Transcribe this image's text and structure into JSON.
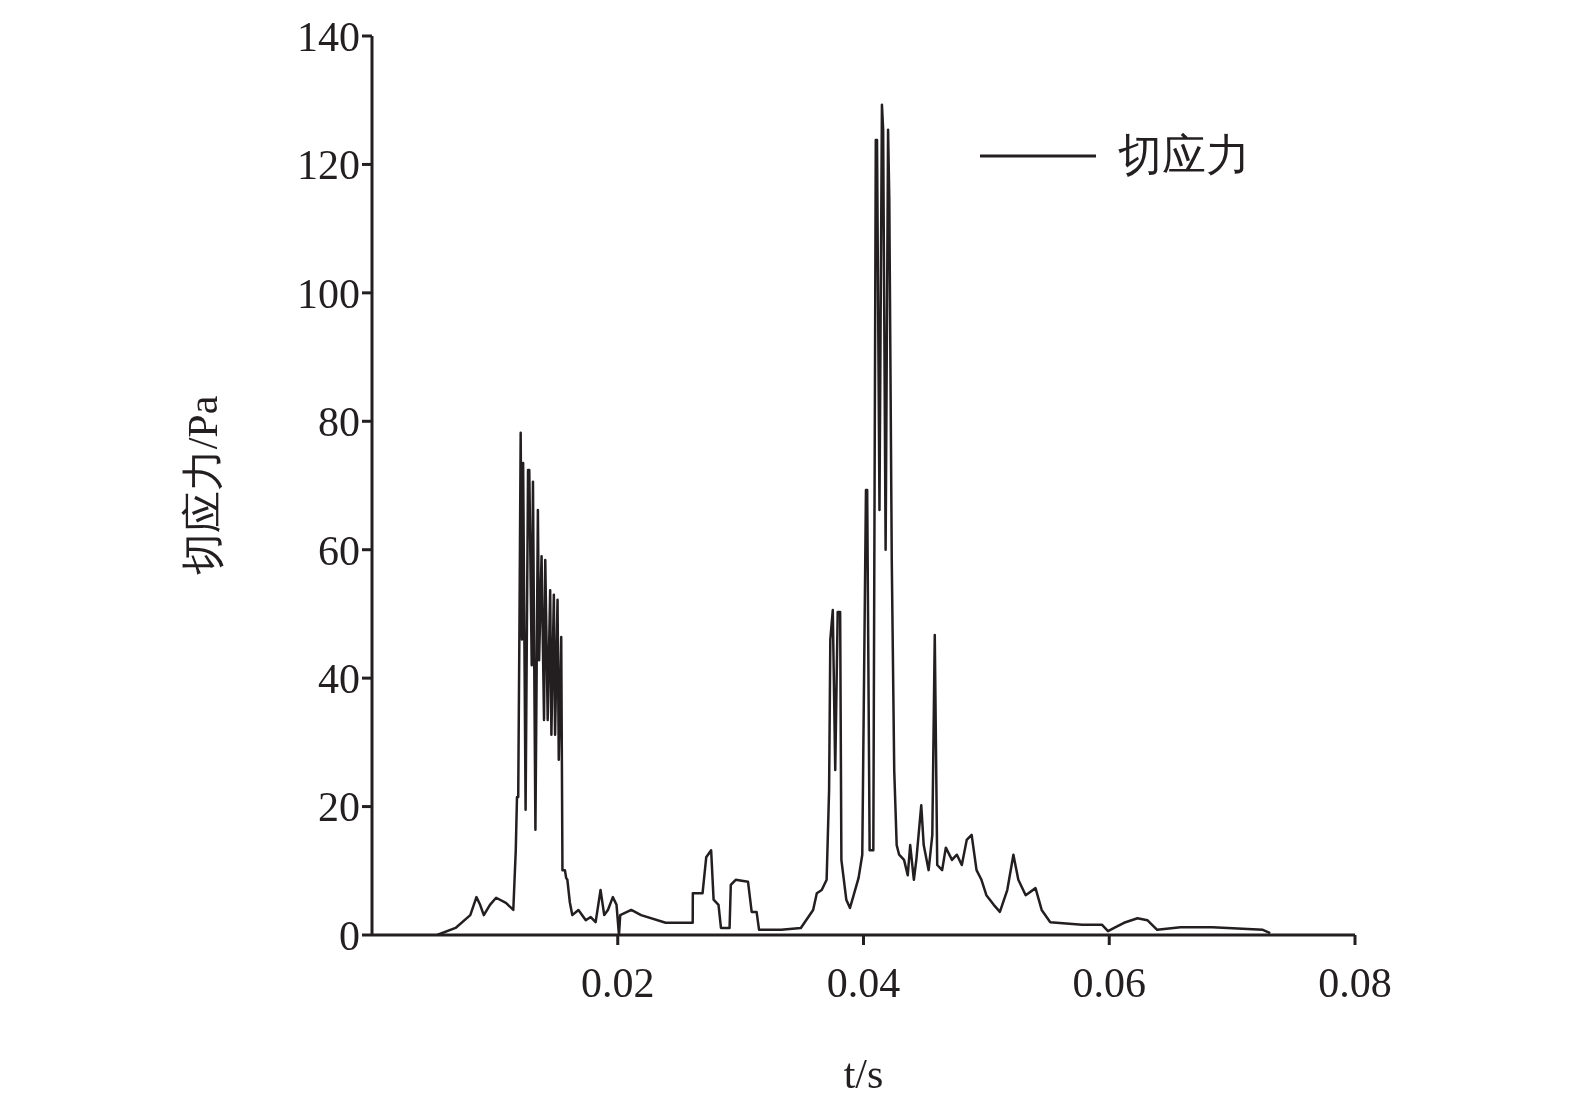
{
  "chart_data": {
    "type": "line",
    "xlabel": "t/s",
    "ylabel": "切应力/Pa",
    "xlim": [
      0,
      0.08
    ],
    "xticks": [
      0.02,
      0.04,
      0.06,
      0.08
    ],
    "ylim": [
      0,
      140
    ],
    "yticks": [
      0,
      20,
      40,
      60,
      80,
      100,
      120,
      140
    ],
    "grid": false,
    "legend": "top right",
    "marker": "none",
    "line_style": "solid",
    "x": [
      0.0053,
      0.0068,
      0.008,
      0.0085,
      0.0088,
      0.0091,
      0.0096,
      0.0101,
      0.0109,
      0.0115,
      0.0117,
      0.0118,
      0.0119,
      0.012,
      0.0121,
      0.0122,
      0.0123,
      0.0125,
      0.0127,
      0.0128,
      0.013,
      0.0131,
      0.0133,
      0.0135,
      0.0136,
      0.0138,
      0.014,
      0.0141,
      0.0143,
      0.0145,
      0.0146,
      0.0148,
      0.0149,
      0.0151,
      0.0152,
      0.0154,
      0.0155,
      0.0157,
      0.0158,
      0.0159,
      0.0161,
      0.0163,
      0.0168,
      0.0174,
      0.0178,
      0.0182,
      0.0186,
      0.0189,
      0.0192,
      0.0196,
      0.0199,
      0.0201,
      0.0202,
      0.0211,
      0.0219,
      0.0239,
      0.0261,
      0.02611,
      0.0269,
      0.0272,
      0.0276,
      0.0278,
      0.0282,
      0.0284,
      0.0291,
      0.0292,
      0.0296,
      0.0306,
      0.0309,
      0.0313,
      0.0315,
      0.0333,
      0.0349,
      0.0359,
      0.0362,
      0.0366,
      0.037,
      0.0372,
      0.0373,
      0.0375,
      0.0377,
      0.0379,
      0.0381,
      0.0382,
      0.0386,
      0.0389,
      0.0392,
      0.0396,
      0.0399,
      0.0402,
      0.0403,
      0.0405,
      0.0408,
      0.041,
      0.0411,
      0.0413,
      0.0415,
      0.0416,
      0.0418,
      0.042,
      0.0421,
      0.0423,
      0.0425,
      0.0427,
      0.0429,
      0.0433,
      0.0436,
      0.0438,
      0.0441,
      0.0443,
      0.0447,
      0.0449,
      0.0453,
      0.0456,
      0.0458,
      0.046,
      0.0464,
      0.0467,
      0.0472,
      0.0476,
      0.048,
      0.0484,
      0.0488,
      0.0492,
      0.0496,
      0.05,
      0.0506,
      0.0511,
      0.0517,
      0.0522,
      0.0526,
      0.0532,
      0.054,
      0.0545,
      0.0552,
      0.0578,
      0.0594,
      0.0599,
      0.0604,
      0.0612,
      0.0623,
      0.0631,
      0.0639,
      0.0658,
      0.0684,
      0.0725,
      0.0731
    ],
    "series": [
      {
        "name": "切应力",
        "color": "#231f20",
        "values": [
          0,
          1.1,
          3.1,
          5.9,
          4.7,
          3.1,
          4.7,
          5.8,
          5,
          3.9,
          13.2,
          21.5,
          21.5,
          48.3,
          78.2,
          46,
          73.5,
          19.5,
          72.4,
          72.4,
          42,
          70.6,
          16.4,
          66.2,
          42.8,
          59,
          33.5,
          58.4,
          33.5,
          53.7,
          31.2,
          53,
          31.2,
          52.2,
          27.3,
          46.4,
          10.1,
          10.1,
          8.9,
          8.6,
          5.1,
          3.1,
          3.9,
          2.3,
          2.8,
          2,
          7,
          3.1,
          3.9,
          5.9,
          4.7,
          0,
          3.1,
          3.9,
          3.1,
          1.9,
          1.9,
          6.5,
          6.5,
          12.1,
          13.2,
          5.5,
          4.7,
          1.1,
          1.1,
          7.8,
          8.6,
          8.3,
          3.6,
          3.6,
          0.8,
          0.8,
          1.1,
          3.9,
          6.5,
          7,
          8.6,
          22.6,
          46,
          50.6,
          25.7,
          50.3,
          50.3,
          11.7,
          5.5,
          4.2,
          6.2,
          8.9,
          12.5,
          69.3,
          69.3,
          13.2,
          13.2,
          123.8,
          123.8,
          66.2,
          129.3,
          125.4,
          60,
          125.4,
          114.5,
          58.4,
          25.7,
          14,
          12.5,
          11.7,
          9.3,
          14,
          8.6,
          11.7,
          20.2,
          14,
          10.1,
          15.6,
          46.7,
          10.9,
          10.1,
          13.6,
          11.7,
          12.5,
          10.9,
          14.8,
          15.6,
          10.1,
          8.6,
          6.2,
          4.7,
          3.6,
          7,
          12.5,
          8.6,
          6.2,
          7.3,
          3.9,
          2,
          1.6,
          1.6,
          0.6,
          1.1,
          1.9,
          2.6,
          2.3,
          0.8,
          1.2,
          1.2,
          0.8,
          0.3
        ]
      }
    ]
  }
}
